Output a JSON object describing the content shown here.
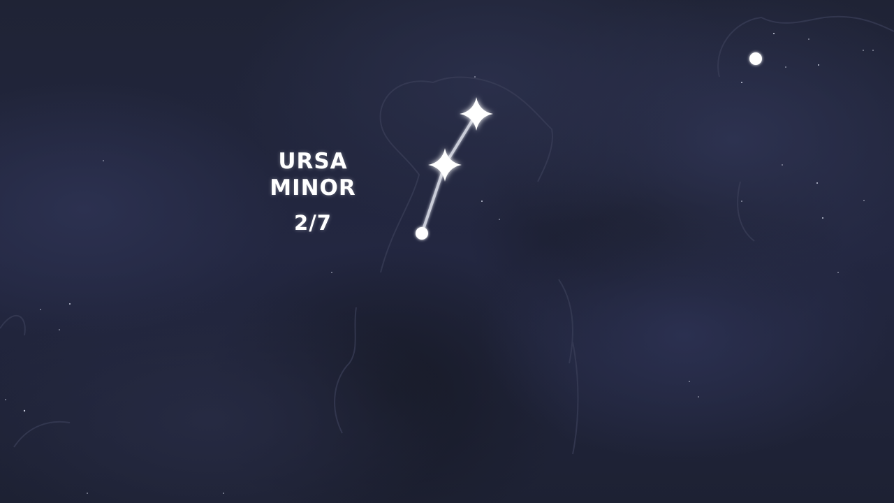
{
  "constellation": {
    "name_line1": "URSA",
    "name_line2": "MINOR",
    "progress": "2/7",
    "stars_found": 2,
    "stars_total": 7
  },
  "colors": {
    "sky": "#1e2233",
    "star": "#ffffff",
    "connector": "#c9ccd8",
    "outline": "#3a3f58"
  },
  "icons": {
    "collected_star": "four-point-star-icon",
    "next_star": "dot-icon",
    "distant_star": "dot-icon"
  }
}
